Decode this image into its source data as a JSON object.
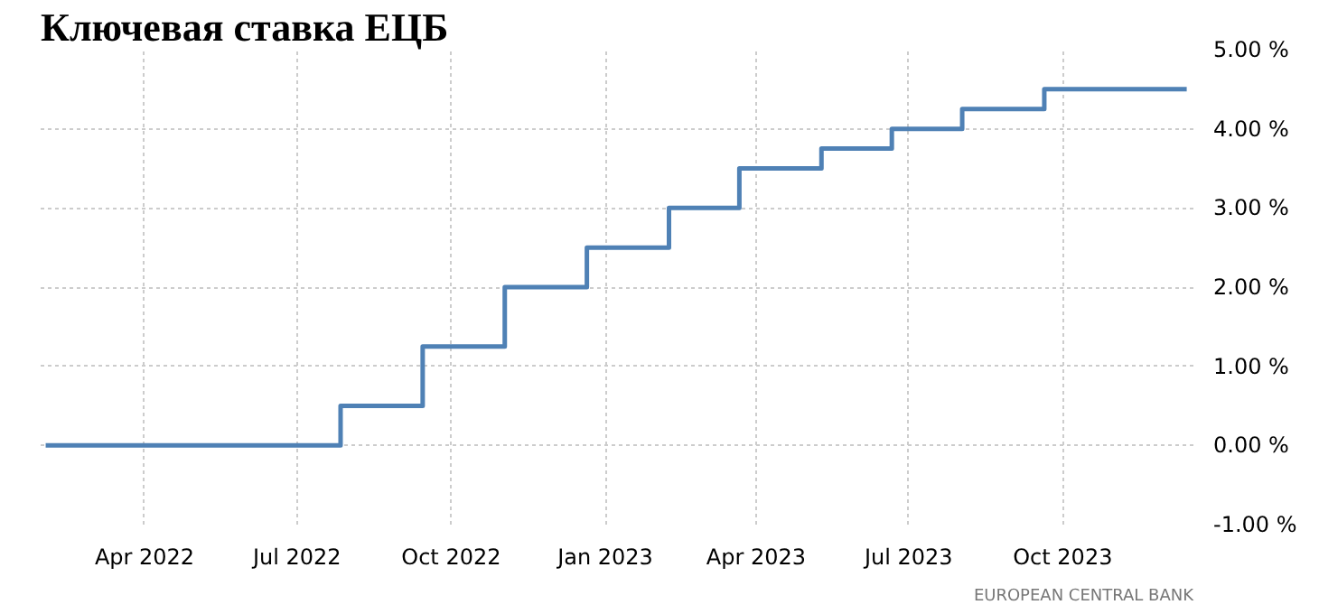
{
  "chart_data": {
    "type": "step",
    "title": "Ключевая ставка ЕЦБ",
    "x": [
      "2022-02-01",
      "2022-07-27",
      "2022-09-14",
      "2022-11-02",
      "2022-12-21",
      "2023-02-08",
      "2023-03-22",
      "2023-05-10",
      "2023-06-21",
      "2023-08-02",
      "2023-09-20",
      "2023-12-14"
    ],
    "series": [
      {
        "color": "#4f81b5",
        "values": [
          0,
          0.5,
          1.25,
          2.0,
          2.5,
          3.0,
          3.5,
          3.75,
          4.0,
          4.25,
          4.5,
          4.5
        ]
      }
    ],
    "xlim": [
      "2022-01-29",
      "2023-12-18"
    ],
    "xticks": [
      {
        "value": "2022-04-01",
        "label": "Apr 2022"
      },
      {
        "value": "2022-07-01",
        "label": "Jul 2022"
      },
      {
        "value": "2022-10-01",
        "label": "Oct 2022"
      },
      {
        "value": "2023-01-01",
        "label": "Jan 2023"
      },
      {
        "value": "2023-04-01",
        "label": "Apr 2023"
      },
      {
        "value": "2023-07-01",
        "label": "Jul 2023"
      },
      {
        "value": "2023-10-01",
        "label": "Oct 2023"
      }
    ],
    "ylim": [
      -1,
      5
    ],
    "yticks": [
      {
        "value": -1,
        "label": "-1.00 %"
      },
      {
        "value": 0,
        "label": "0.00 %"
      },
      {
        "value": 1,
        "label": "1.00 %"
      },
      {
        "value": 2,
        "label": "2.00 %"
      },
      {
        "value": 3,
        "label": "3.00 %"
      },
      {
        "value": 4,
        "label": "4.00 %"
      },
      {
        "value": 5,
        "label": "5.00 %"
      }
    ],
    "grid": true,
    "annotations": [
      "EUROPEAN CENTRAL BANK"
    ]
  }
}
